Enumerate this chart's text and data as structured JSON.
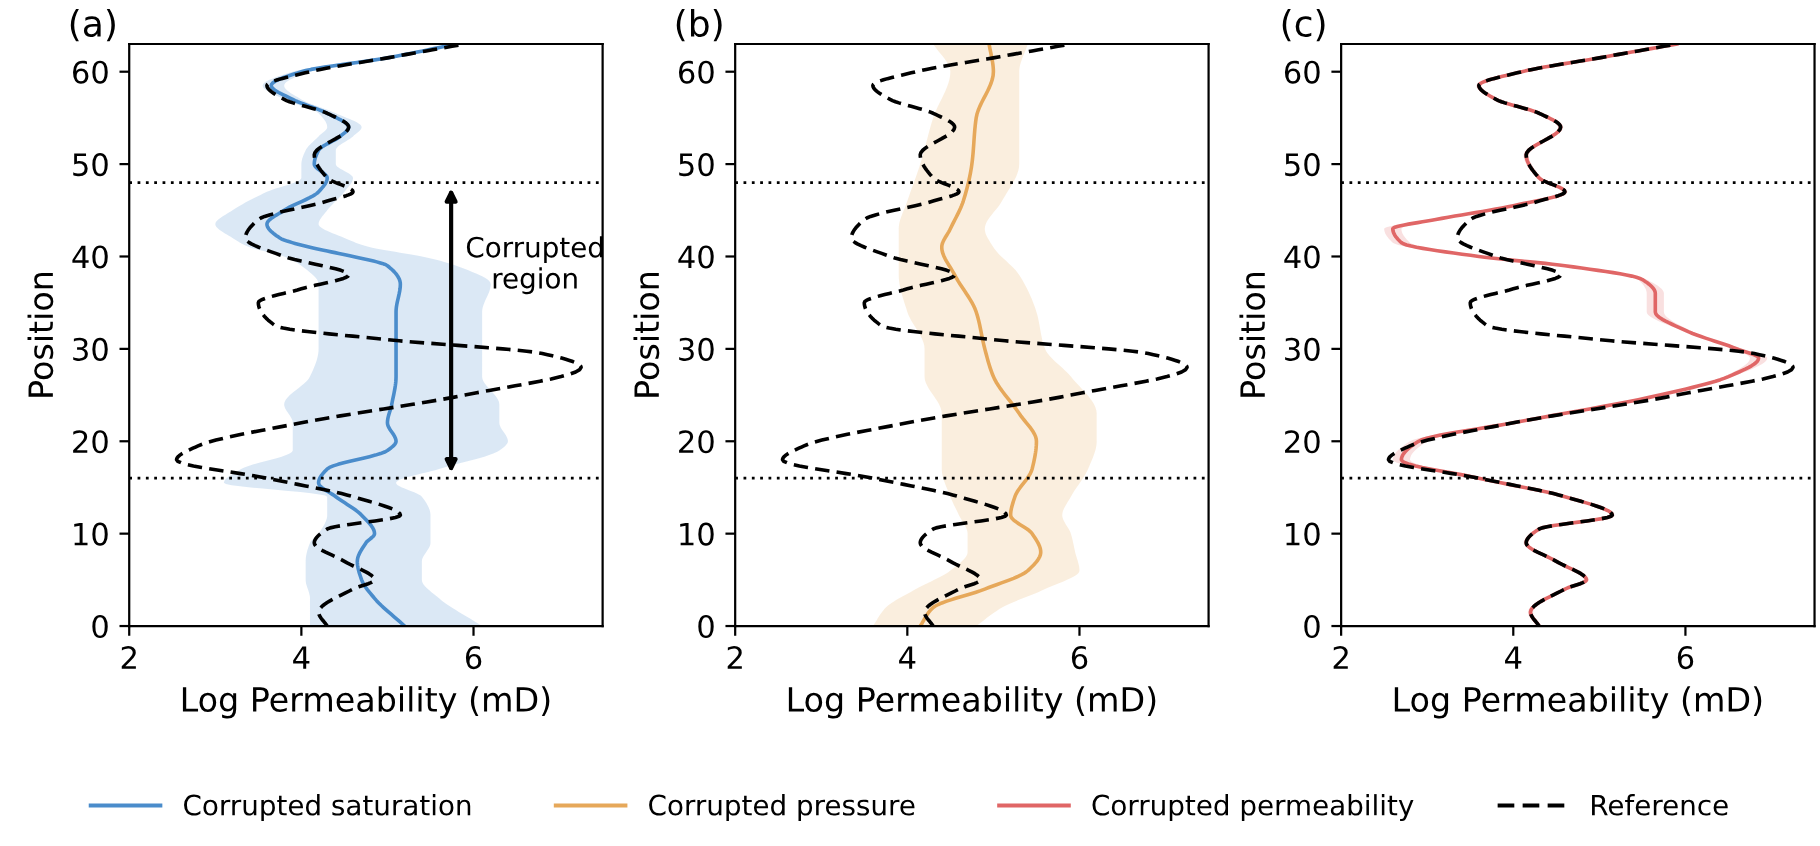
{
  "chart_data": [
    {
      "type": "line",
      "orientation": "horizontal",
      "title": "(a)",
      "xlabel": "Log Permeability (mD)",
      "ylabel": "Position",
      "xlim": [
        2,
        7.5
      ],
      "xticks": [
        2,
        4,
        6
      ],
      "ylim": [
        0,
        63
      ],
      "yticks": [
        0,
        10,
        20,
        30,
        40,
        50,
        60
      ],
      "grid": false,
      "legend": "bottom",
      "line_style": "solid",
      "marker": "none",
      "ref_lines": [
        {
          "axis": "y",
          "value": 16,
          "label": null,
          "color": "#000000",
          "line_style": "dotted"
        },
        {
          "axis": "y",
          "value": 48,
          "label": null,
          "color": "#000000",
          "line_style": "dotted"
        }
      ],
      "annotations": [
        "Corrupted\nregion"
      ],
      "series": [
        {
          "name": "Corrupted saturation",
          "color": "#4a8ccb",
          "values": [
            5.2,
            4.85,
            4.7,
            4.65,
            4.75,
            4.85,
            4.7,
            4.4,
            4.2,
            4.3,
            5.0,
            5.1,
            5.0,
            5.05,
            5.1,
            5.1,
            5.1,
            5.15,
            5.0,
            4.6,
            4.1,
            3.75,
            3.6,
            3.8,
            4.2,
            4.3,
            4.15,
            4.2,
            4.45,
            4.55,
            4.3,
            3.9,
            3.65,
            4.0,
            5.0,
            5.8
          ],
          "x": [
            0,
            3,
            5,
            7,
            9,
            10,
            12,
            14,
            15.5,
            17,
            19,
            20,
            22,
            24,
            27,
            30,
            34,
            37,
            39,
            40,
            41,
            42,
            43.5,
            45,
            47,
            48.5,
            50,
            51.5,
            53,
            54,
            55.5,
            57,
            58.5,
            60,
            61.5,
            63
          ],
          "lower": [
            4.1,
            4.1,
            4.05,
            4.05,
            4.1,
            4.2,
            4.3,
            4.3,
            3.1,
            3.3,
            3.9,
            3.9,
            3.9,
            3.8,
            4.1,
            4.2,
            4.2,
            4.2,
            4.0,
            3.8,
            3.4,
            3.2,
            3.0,
            3.2,
            3.6,
            4.0,
            4.0,
            4.05,
            4.2,
            4.3,
            4.2,
            3.8,
            3.55,
            3.9,
            4.9,
            5.8
          ],
          "upper": [
            6.1,
            5.6,
            5.4,
            5.4,
            5.5,
            5.5,
            5.5,
            5.4,
            5.1,
            5.6,
            6.3,
            6.4,
            6.3,
            6.3,
            6.1,
            6.1,
            6.1,
            6.2,
            5.8,
            5.4,
            4.8,
            4.5,
            4.2,
            4.3,
            4.5,
            4.6,
            4.4,
            4.4,
            4.6,
            4.7,
            4.4,
            4.0,
            3.8,
            4.1,
            5.1,
            5.85
          ]
        },
        {
          "name": "Reference",
          "color": "#000000",
          "line_style": "dashed",
          "values": [
            4.3,
            4.2,
            4.6,
            4.85,
            4.5,
            4.15,
            4.3,
            5.15,
            4.6,
            3.6,
            2.55,
            2.8,
            4.0,
            5.9,
            7.25,
            6.8,
            5.0,
            3.7,
            3.5,
            4.0,
            4.55,
            3.8,
            3.35,
            3.5,
            4.3,
            4.6,
            4.3,
            4.15,
            4.55,
            4.3,
            3.8,
            3.6,
            4.1,
            5.0,
            5.9
          ],
          "x": [
            0,
            1.5,
            4,
            5,
            7,
            9,
            10.5,
            12,
            14,
            16,
            18,
            19.5,
            22,
            25,
            28,
            29.5,
            31,
            32.5,
            35,
            36.5,
            38,
            40,
            42,
            44,
            46,
            47,
            48.5,
            51,
            54,
            55.5,
            57,
            58.5,
            60,
            61.5,
            63
          ]
        }
      ]
    },
    {
      "type": "line",
      "orientation": "horizontal",
      "title": "(b)",
      "xlabel": "Log Permeability (mD)",
      "ylabel": "Position",
      "xlim": [
        2,
        7.5
      ],
      "xticks": [
        2,
        4,
        6
      ],
      "ylim": [
        0,
        63
      ],
      "yticks": [
        0,
        10,
        20,
        30,
        40,
        50,
        60
      ],
      "grid": false,
      "legend": "bottom",
      "line_style": "solid",
      "marker": "none",
      "ref_lines": [
        {
          "axis": "y",
          "value": 16,
          "label": null,
          "color": "#000000",
          "line_style": "dotted"
        },
        {
          "axis": "y",
          "value": 48,
          "label": null,
          "color": "#000000",
          "line_style": "dotted"
        }
      ],
      "series": [
        {
          "name": "Corrupted pressure",
          "color": "#e6a85a",
          "values": [
            4.15,
            4.3,
            4.9,
            5.4,
            5.55,
            5.45,
            5.2,
            5.25,
            5.45,
            5.5,
            5.3,
            5.0,
            4.9,
            4.8,
            4.55,
            4.4,
            4.5,
            4.65,
            4.75,
            4.8,
            5.0,
            4.95
          ],
          "x": [
            0,
            2,
            4,
            6,
            8,
            10,
            12,
            14,
            17,
            20,
            23,
            27,
            30,
            34,
            38,
            41,
            43,
            46,
            50,
            55,
            60,
            63
          ],
          "lower": [
            3.6,
            3.75,
            4.1,
            4.5,
            4.7,
            4.7,
            4.6,
            4.5,
            4.4,
            4.4,
            4.4,
            4.2,
            4.2,
            4.0,
            3.9,
            3.9,
            3.9,
            4.0,
            4.15,
            4.3,
            4.5,
            4.3
          ],
          "upper": [
            4.8,
            5.1,
            5.6,
            6.0,
            5.95,
            5.9,
            5.8,
            5.9,
            6.1,
            6.2,
            6.2,
            5.9,
            5.6,
            5.5,
            5.3,
            5.0,
            4.9,
            5.1,
            5.3,
            5.3,
            5.3,
            5.4
          ]
        },
        {
          "name": "Reference",
          "color": "#000000",
          "line_style": "dashed",
          "values": [
            4.3,
            4.2,
            4.6,
            4.85,
            4.5,
            4.15,
            4.3,
            5.15,
            4.6,
            3.6,
            2.55,
            2.8,
            4.0,
            5.9,
            7.25,
            6.8,
            5.0,
            3.7,
            3.5,
            4.0,
            4.55,
            3.8,
            3.35,
            3.5,
            4.3,
            4.6,
            4.3,
            4.15,
            4.55,
            4.3,
            3.8,
            3.6,
            4.1,
            5.0,
            5.9
          ],
          "x": [
            0,
            1.5,
            4,
            5,
            7,
            9,
            10.5,
            12,
            14,
            16,
            18,
            19.5,
            22,
            25,
            28,
            29.5,
            31,
            32.5,
            35,
            36.5,
            38,
            40,
            42,
            44,
            46,
            47,
            48.5,
            51,
            54,
            55.5,
            57,
            58.5,
            60,
            61.5,
            63
          ]
        }
      ]
    },
    {
      "type": "line",
      "orientation": "horizontal",
      "title": "(c)",
      "xlabel": "Log Permeability (mD)",
      "ylabel": "Position",
      "xlim": [
        2,
        7.5
      ],
      "xticks": [
        2,
        4,
        6
      ],
      "ylim": [
        0,
        63
      ],
      "yticks": [
        0,
        10,
        20,
        30,
        40,
        50,
        60
      ],
      "grid": false,
      "legend": "bottom",
      "line_style": "solid",
      "marker": "none",
      "ref_lines": [
        {
          "axis": "y",
          "value": 16,
          "label": null,
          "color": "#000000",
          "line_style": "dotted"
        },
        {
          "axis": "y",
          "value": 48,
          "label": null,
          "color": "#000000",
          "line_style": "dotted"
        }
      ],
      "series": [
        {
          "name": "Corrupted permeability",
          "color": "#e06666",
          "values": [
            4.3,
            4.2,
            4.6,
            4.85,
            4.5,
            4.15,
            4.3,
            5.15,
            4.6,
            3.6,
            2.7,
            2.9,
            4.0,
            5.7,
            6.5,
            6.85,
            6.6,
            6.0,
            5.65,
            5.65,
            5.5,
            4.6,
            3.6,
            2.7,
            2.6,
            3.1,
            4.0,
            4.6,
            4.3,
            4.15,
            4.55,
            4.3,
            3.8,
            3.6,
            4.1,
            5.0,
            5.9
          ],
          "x": [
            0,
            1.5,
            4,
            5,
            7,
            9,
            10.5,
            12,
            14,
            16,
            18,
            20,
            22,
            25,
            27,
            29,
            30,
            32,
            34,
            36,
            37.5,
            39,
            40,
            41.5,
            43,
            44,
            45.5,
            47,
            48.5,
            51,
            54,
            55.5,
            57,
            58.5,
            60,
            61.5,
            63
          ],
          "lower": [
            4.27,
            4.17,
            4.57,
            4.82,
            4.47,
            4.12,
            4.27,
            5.12,
            4.57,
            3.57,
            2.6,
            2.8,
            3.97,
            5.65,
            6.45,
            6.75,
            6.55,
            5.95,
            5.55,
            5.55,
            5.45,
            4.55,
            3.55,
            2.6,
            2.5,
            3.05,
            3.97,
            4.57,
            4.27,
            4.12,
            4.52,
            4.27,
            3.77,
            3.57,
            4.07,
            4.97,
            5.87
          ],
          "upper": [
            4.33,
            4.23,
            4.63,
            4.88,
            4.53,
            4.18,
            4.33,
            5.18,
            4.63,
            3.63,
            2.8,
            3.0,
            4.03,
            5.75,
            6.55,
            6.95,
            6.65,
            6.05,
            5.75,
            5.75,
            5.55,
            4.65,
            3.65,
            2.8,
            2.7,
            3.15,
            4.03,
            4.63,
            4.33,
            4.18,
            4.58,
            4.33,
            3.83,
            3.63,
            4.13,
            5.03,
            5.93
          ]
        },
        {
          "name": "Reference",
          "color": "#000000",
          "line_style": "dashed",
          "values": [
            4.3,
            4.2,
            4.6,
            4.85,
            4.5,
            4.15,
            4.3,
            5.15,
            4.6,
            3.6,
            2.55,
            2.8,
            4.0,
            5.9,
            7.25,
            6.8,
            5.0,
            3.7,
            3.5,
            4.0,
            4.55,
            3.8,
            3.35,
            3.5,
            4.3,
            4.6,
            4.3,
            4.15,
            4.55,
            4.3,
            3.8,
            3.6,
            4.1,
            5.0,
            5.9
          ],
          "x": [
            0,
            1.5,
            4,
            5,
            7,
            9,
            10.5,
            12,
            14,
            16,
            18,
            19.5,
            22,
            25,
            28,
            29.5,
            31,
            32.5,
            35,
            36.5,
            38,
            40,
            42,
            44,
            46,
            47,
            48.5,
            51,
            54,
            55.5,
            57,
            58.5,
            60,
            61.5,
            63
          ]
        }
      ]
    }
  ]
}
